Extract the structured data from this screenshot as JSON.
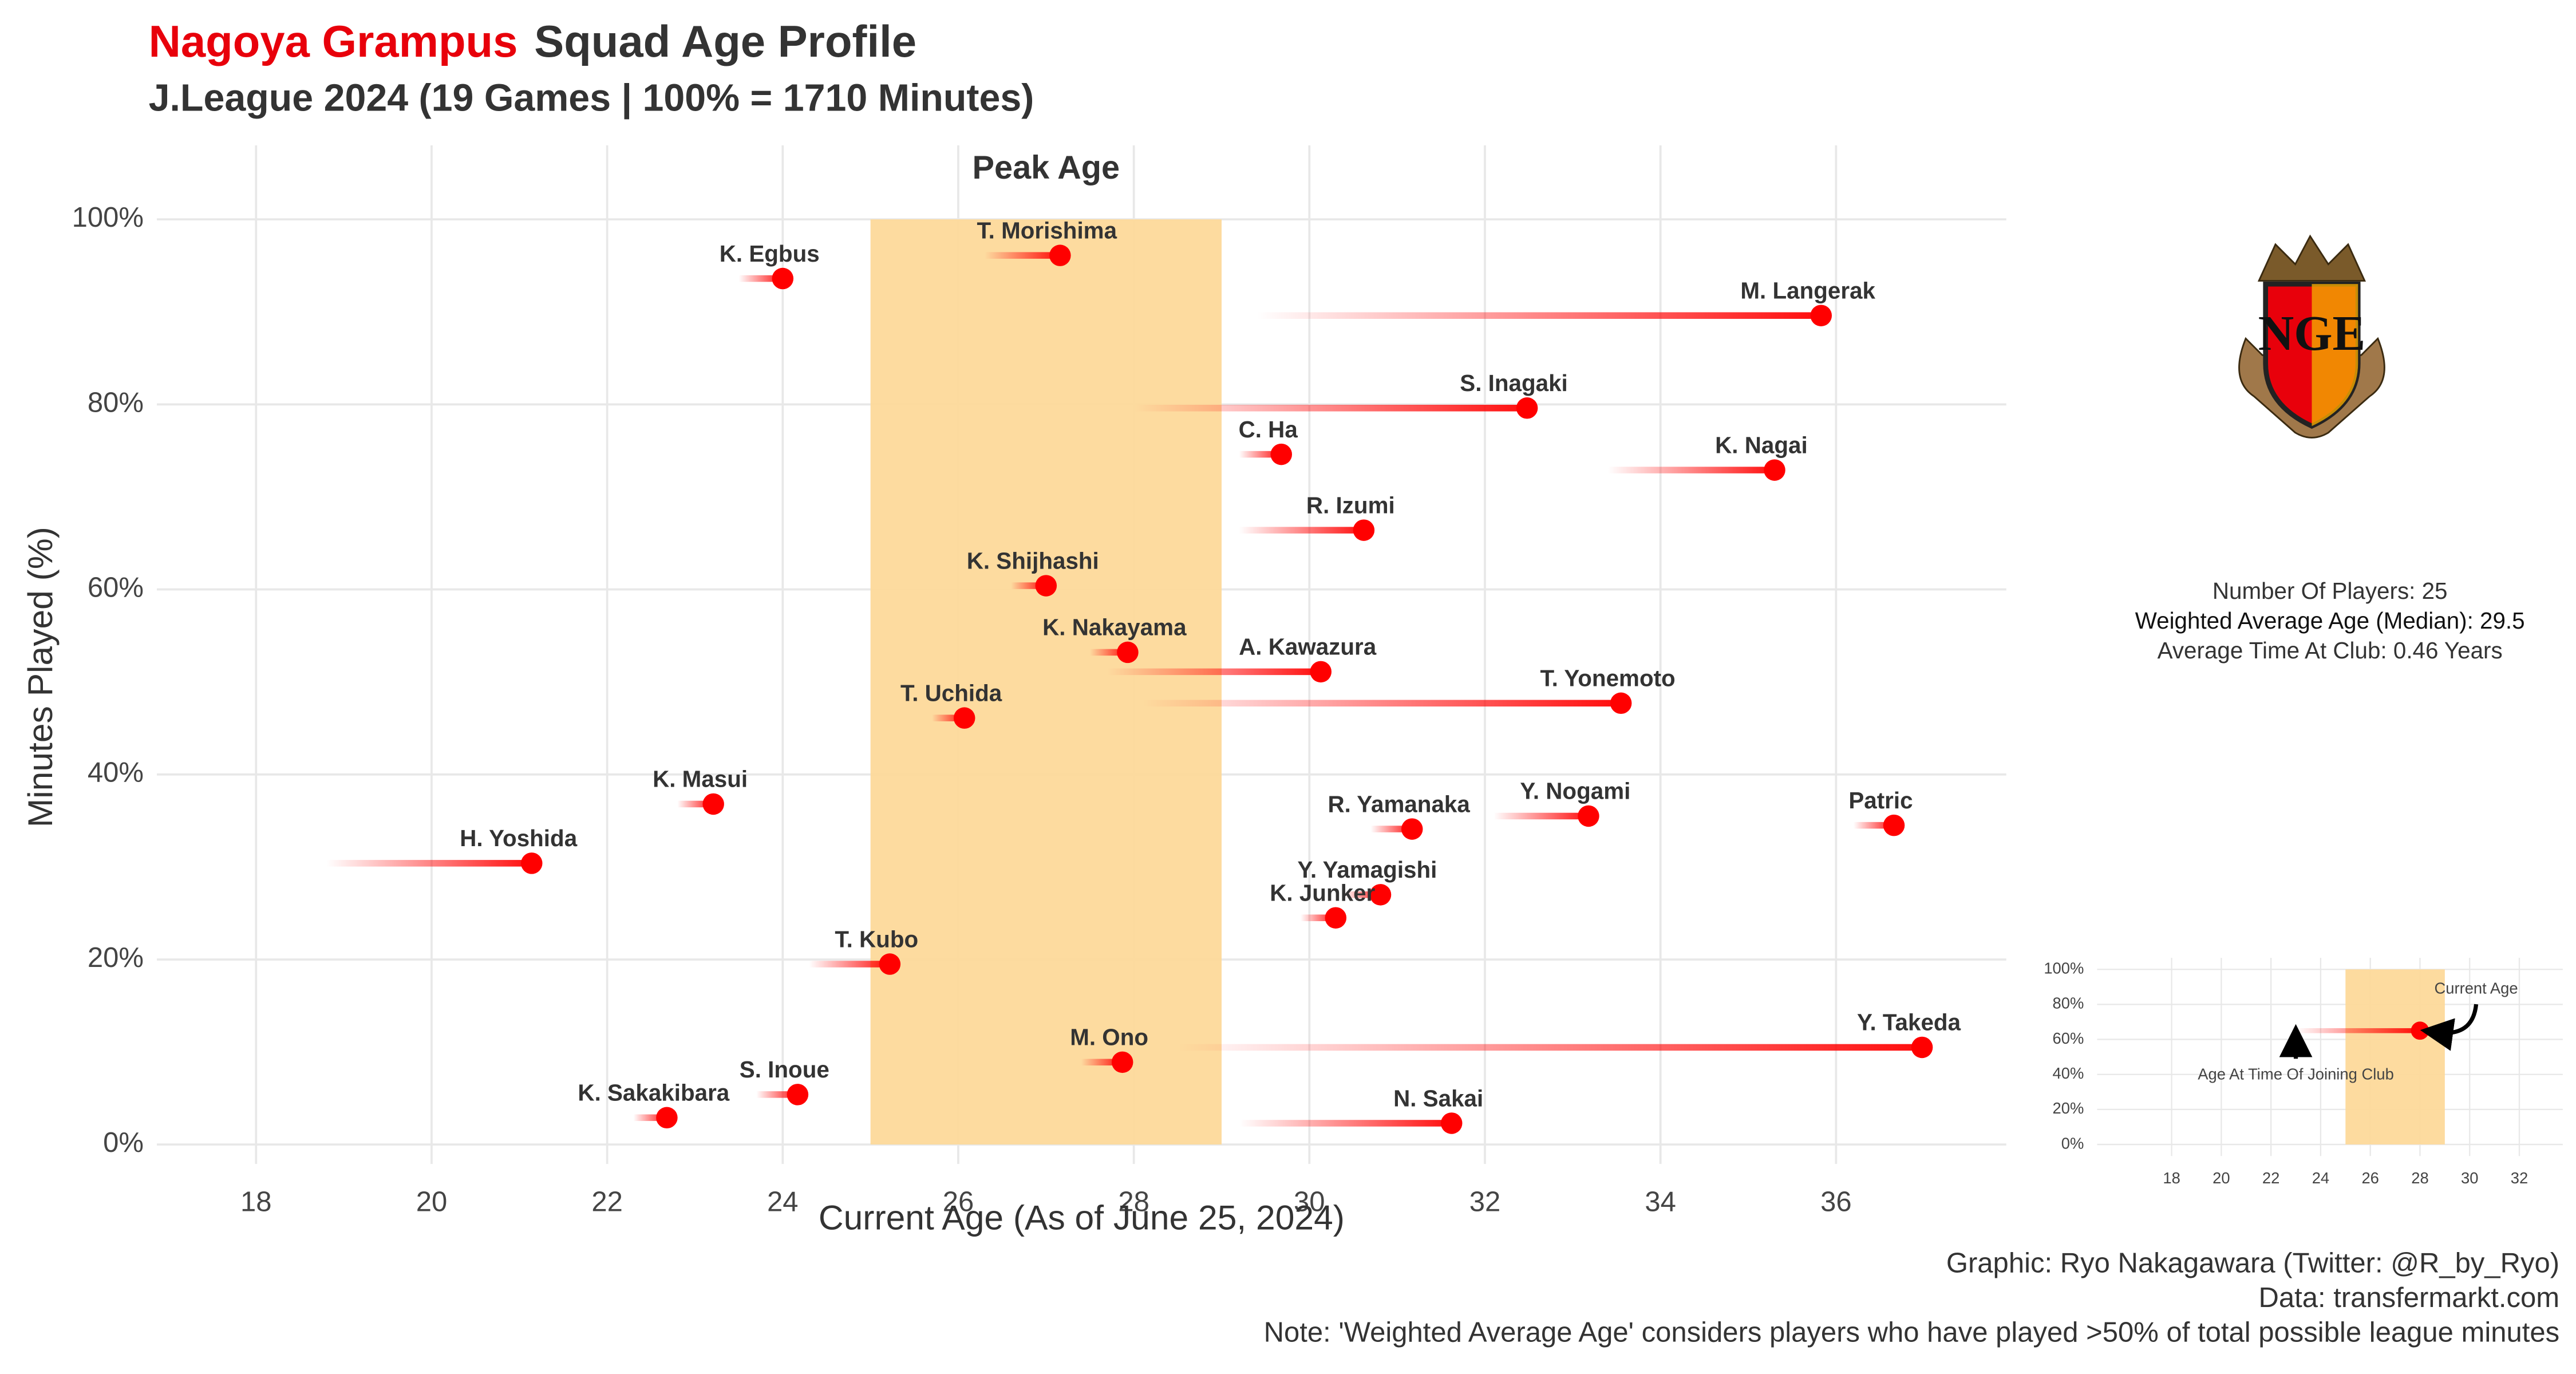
{
  "chart_data": [
    {
      "type": "scatter",
      "title_team": "Nagoya Grampus",
      "title": "Squad Age Profile",
      "subtitle": "J.League 2024 (19 Games | 100% = 1710 Minutes)",
      "xlabel": "Current Age (As of June 25, 2024)",
      "ylabel": "Minutes Played (%)",
      "labels": [
        "K. Egbus",
        "T. Morishima",
        "M. Langerak",
        "S. Inagaki",
        "C. Ha",
        "K. Nagai",
        "R. Izumi",
        "K. Shijhashi",
        "K. Nakayama",
        "A. Kawazura",
        "T. Uchida",
        "T. Yonemoto",
        "K. Masui",
        "R. Yamanaka",
        "Y. Nogami",
        "Patric",
        "H. Yoshida",
        "Y. Yamagishi",
        "K. Junker",
        "T. Kubo",
        "Y. Takeda",
        "M. Ono",
        "S. Inoue",
        "K. Sakakibara",
        "N. Sakai"
      ],
      "x": [
        24.0,
        27.16,
        35.83,
        32.48,
        29.68,
        35.3,
        30.62,
        27.0,
        27.93,
        30.13,
        26.07,
        33.55,
        23.21,
        31.17,
        33.18,
        36.66,
        21.14,
        30.81,
        30.3,
        25.22,
        36.98,
        27.87,
        24.17,
        22.68,
        31.62
      ],
      "values": [
        93.6,
        96.1,
        89.6,
        79.6,
        74.6,
        72.9,
        66.4,
        60.4,
        53.2,
        51.1,
        46.1,
        47.7,
        36.8,
        34.1,
        35.5,
        34.5,
        30.4,
        27.0,
        24.5,
        19.5,
        10.5,
        8.9,
        5.4,
        2.9,
        2.3
      ],
      "join_age": [
        23.5,
        26.3,
        29.4,
        28.0,
        29.2,
        33.4,
        29.2,
        26.6,
        27.5,
        27.7,
        25.7,
        28.1,
        22.8,
        30.7,
        32.1,
        36.2,
        18.8,
        30.4,
        29.9,
        24.3,
        28.5,
        27.4,
        23.7,
        22.3,
        29.2
      ],
      "color": "#ff0000",
      "band": {
        "from": 25,
        "to": 29,
        "label": "Peak Age",
        "color": "#fdd99a"
      },
      "xlim": [
        16.87,
        37.94
      ],
      "ylim": [
        -2.1,
        108
      ],
      "xticks": [
        18,
        20,
        22,
        24,
        26,
        28,
        30,
        32,
        34,
        36
      ],
      "yticks": [
        {
          "value": 0,
          "label": "0%"
        },
        {
          "value": 20,
          "label": "20%"
        },
        {
          "value": 40,
          "label": "40%"
        },
        {
          "value": 60,
          "label": "60%"
        },
        {
          "value": 80,
          "label": "80%"
        },
        {
          "value": 100,
          "label": "100%"
        }
      ],
      "grid": true,
      "stats": [
        "Number Of Players: 25",
        "Weighted Average Age (Median): 29.5",
        "Average Time At Club: 0.46 Years"
      ],
      "captions": [
        "Graphic: Ryo Nakagawara (Twitter: @R_by_Ryo)",
        "Data: transfermarkt.com",
        "Note: 'Weighted Average Age' considers players who have played >50% of total possible league minutes"
      ]
    },
    {
      "type": "scatter",
      "x": [
        28
      ],
      "values": [
        65
      ],
      "join_age": [
        23
      ],
      "color": "#ff0000",
      "band": {
        "from": 25,
        "to": 29,
        "color": "#fdd99a"
      },
      "annotations": [
        "Current Age",
        "Age At Time Of Joining Club"
      ],
      "xlim": [
        15,
        33.75
      ],
      "ylim": [
        -6.6,
        106.6
      ],
      "xticks": [
        18,
        20,
        22,
        24,
        26,
        28,
        30,
        32
      ],
      "yticks": [
        {
          "value": 0,
          "label": "0%"
        },
        {
          "value": 20,
          "label": "20%"
        },
        {
          "value": 40,
          "label": "40%"
        },
        {
          "value": 60,
          "label": "60%"
        },
        {
          "value": 80,
          "label": "80%"
        },
        {
          "value": 100,
          "label": "100%"
        }
      ],
      "grid": true
    }
  ]
}
